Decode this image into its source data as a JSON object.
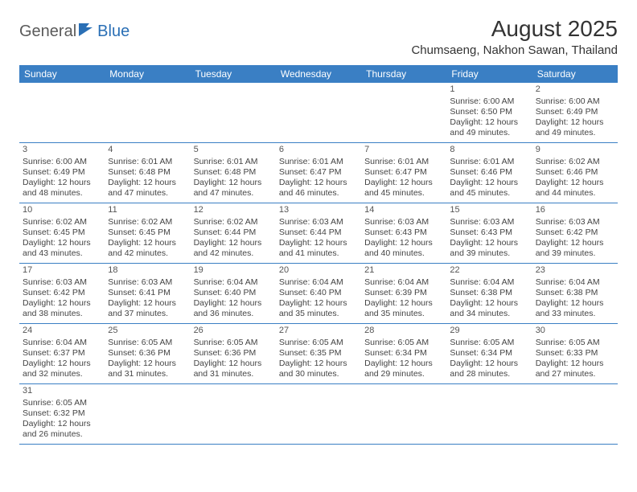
{
  "logo": {
    "part1": "General",
    "part2": "Blue"
  },
  "title": "August 2025",
  "location": "Chumsaeng, Nakhon Sawan, Thailand",
  "colors": {
    "header_bg": "#3a7fc4",
    "header_text": "#ffffff",
    "body_text": "#444444",
    "logo_gray": "#5a5a5a",
    "logo_blue": "#2a6fb5",
    "border": "#3a7fc4"
  },
  "weekdays": [
    "Sunday",
    "Monday",
    "Tuesday",
    "Wednesday",
    "Thursday",
    "Friday",
    "Saturday"
  ],
  "weeks": [
    [
      null,
      null,
      null,
      null,
      null,
      {
        "n": "1",
        "sr": "Sunrise: 6:00 AM",
        "ss": "Sunset: 6:50 PM",
        "d1": "Daylight: 12 hours",
        "d2": "and 49 minutes."
      },
      {
        "n": "2",
        "sr": "Sunrise: 6:00 AM",
        "ss": "Sunset: 6:49 PM",
        "d1": "Daylight: 12 hours",
        "d2": "and 49 minutes."
      }
    ],
    [
      {
        "n": "3",
        "sr": "Sunrise: 6:00 AM",
        "ss": "Sunset: 6:49 PM",
        "d1": "Daylight: 12 hours",
        "d2": "and 48 minutes."
      },
      {
        "n": "4",
        "sr": "Sunrise: 6:01 AM",
        "ss": "Sunset: 6:48 PM",
        "d1": "Daylight: 12 hours",
        "d2": "and 47 minutes."
      },
      {
        "n": "5",
        "sr": "Sunrise: 6:01 AM",
        "ss": "Sunset: 6:48 PM",
        "d1": "Daylight: 12 hours",
        "d2": "and 47 minutes."
      },
      {
        "n": "6",
        "sr": "Sunrise: 6:01 AM",
        "ss": "Sunset: 6:47 PM",
        "d1": "Daylight: 12 hours",
        "d2": "and 46 minutes."
      },
      {
        "n": "7",
        "sr": "Sunrise: 6:01 AM",
        "ss": "Sunset: 6:47 PM",
        "d1": "Daylight: 12 hours",
        "d2": "and 45 minutes."
      },
      {
        "n": "8",
        "sr": "Sunrise: 6:01 AM",
        "ss": "Sunset: 6:46 PM",
        "d1": "Daylight: 12 hours",
        "d2": "and 45 minutes."
      },
      {
        "n": "9",
        "sr": "Sunrise: 6:02 AM",
        "ss": "Sunset: 6:46 PM",
        "d1": "Daylight: 12 hours",
        "d2": "and 44 minutes."
      }
    ],
    [
      {
        "n": "10",
        "sr": "Sunrise: 6:02 AM",
        "ss": "Sunset: 6:45 PM",
        "d1": "Daylight: 12 hours",
        "d2": "and 43 minutes."
      },
      {
        "n": "11",
        "sr": "Sunrise: 6:02 AM",
        "ss": "Sunset: 6:45 PM",
        "d1": "Daylight: 12 hours",
        "d2": "and 42 minutes."
      },
      {
        "n": "12",
        "sr": "Sunrise: 6:02 AM",
        "ss": "Sunset: 6:44 PM",
        "d1": "Daylight: 12 hours",
        "d2": "and 42 minutes."
      },
      {
        "n": "13",
        "sr": "Sunrise: 6:03 AM",
        "ss": "Sunset: 6:44 PM",
        "d1": "Daylight: 12 hours",
        "d2": "and 41 minutes."
      },
      {
        "n": "14",
        "sr": "Sunrise: 6:03 AM",
        "ss": "Sunset: 6:43 PM",
        "d1": "Daylight: 12 hours",
        "d2": "and 40 minutes."
      },
      {
        "n": "15",
        "sr": "Sunrise: 6:03 AM",
        "ss": "Sunset: 6:43 PM",
        "d1": "Daylight: 12 hours",
        "d2": "and 39 minutes."
      },
      {
        "n": "16",
        "sr": "Sunrise: 6:03 AM",
        "ss": "Sunset: 6:42 PM",
        "d1": "Daylight: 12 hours",
        "d2": "and 39 minutes."
      }
    ],
    [
      {
        "n": "17",
        "sr": "Sunrise: 6:03 AM",
        "ss": "Sunset: 6:42 PM",
        "d1": "Daylight: 12 hours",
        "d2": "and 38 minutes."
      },
      {
        "n": "18",
        "sr": "Sunrise: 6:03 AM",
        "ss": "Sunset: 6:41 PM",
        "d1": "Daylight: 12 hours",
        "d2": "and 37 minutes."
      },
      {
        "n": "19",
        "sr": "Sunrise: 6:04 AM",
        "ss": "Sunset: 6:40 PM",
        "d1": "Daylight: 12 hours",
        "d2": "and 36 minutes."
      },
      {
        "n": "20",
        "sr": "Sunrise: 6:04 AM",
        "ss": "Sunset: 6:40 PM",
        "d1": "Daylight: 12 hours",
        "d2": "and 35 minutes."
      },
      {
        "n": "21",
        "sr": "Sunrise: 6:04 AM",
        "ss": "Sunset: 6:39 PM",
        "d1": "Daylight: 12 hours",
        "d2": "and 35 minutes."
      },
      {
        "n": "22",
        "sr": "Sunrise: 6:04 AM",
        "ss": "Sunset: 6:38 PM",
        "d1": "Daylight: 12 hours",
        "d2": "and 34 minutes."
      },
      {
        "n": "23",
        "sr": "Sunrise: 6:04 AM",
        "ss": "Sunset: 6:38 PM",
        "d1": "Daylight: 12 hours",
        "d2": "and 33 minutes."
      }
    ],
    [
      {
        "n": "24",
        "sr": "Sunrise: 6:04 AM",
        "ss": "Sunset: 6:37 PM",
        "d1": "Daylight: 12 hours",
        "d2": "and 32 minutes."
      },
      {
        "n": "25",
        "sr": "Sunrise: 6:05 AM",
        "ss": "Sunset: 6:36 PM",
        "d1": "Daylight: 12 hours",
        "d2": "and 31 minutes."
      },
      {
        "n": "26",
        "sr": "Sunrise: 6:05 AM",
        "ss": "Sunset: 6:36 PM",
        "d1": "Daylight: 12 hours",
        "d2": "and 31 minutes."
      },
      {
        "n": "27",
        "sr": "Sunrise: 6:05 AM",
        "ss": "Sunset: 6:35 PM",
        "d1": "Daylight: 12 hours",
        "d2": "and 30 minutes."
      },
      {
        "n": "28",
        "sr": "Sunrise: 6:05 AM",
        "ss": "Sunset: 6:34 PM",
        "d1": "Daylight: 12 hours",
        "d2": "and 29 minutes."
      },
      {
        "n": "29",
        "sr": "Sunrise: 6:05 AM",
        "ss": "Sunset: 6:34 PM",
        "d1": "Daylight: 12 hours",
        "d2": "and 28 minutes."
      },
      {
        "n": "30",
        "sr": "Sunrise: 6:05 AM",
        "ss": "Sunset: 6:33 PM",
        "d1": "Daylight: 12 hours",
        "d2": "and 27 minutes."
      }
    ],
    [
      {
        "n": "31",
        "sr": "Sunrise: 6:05 AM",
        "ss": "Sunset: 6:32 PM",
        "d1": "Daylight: 12 hours",
        "d2": "and 26 minutes."
      },
      null,
      null,
      null,
      null,
      null,
      null
    ]
  ]
}
